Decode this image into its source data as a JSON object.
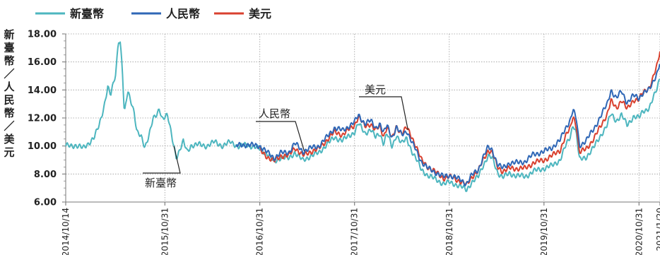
{
  "chart_data": {
    "type": "line",
    "ylabel": "新臺幣／人民幣／美元",
    "ylim": [
      6.0,
      18.0
    ],
    "y_ticks": [
      "18.00",
      "16.00",
      "14.00",
      "12.00",
      "10.00",
      "8.00",
      "6.00"
    ],
    "x_start": "2014-10-14",
    "x_end": "2021-01-20",
    "x_ticks": [
      {
        "date": "2014-10-14",
        "label": "2014/10/14"
      },
      {
        "date": "2015-10-31",
        "label": "2015/10/31"
      },
      {
        "date": "2016-10-31",
        "label": "2016/10/31"
      },
      {
        "date": "2017-10-31",
        "label": "2017/10/31"
      },
      {
        "date": "2018-10-31",
        "label": "2018/10/31"
      },
      {
        "date": "2019-10-31",
        "label": "2019/10/31"
      },
      {
        "date": "2020-10-31",
        "label": "2020/10/31"
      },
      {
        "date": "2021-01-20",
        "label": "2021/1/20"
      }
    ],
    "grid": true,
    "legend_position": "top-left",
    "series": [
      {
        "name": "新臺幣",
        "color": "#4db6bf",
        "points": [
          [
            "2014-10-14",
            10.0
          ],
          [
            "2014-11-20",
            10.05
          ],
          [
            "2014-12-20",
            9.85
          ],
          [
            "2015-01-10",
            10.2
          ],
          [
            "2015-02-01",
            10.6
          ],
          [
            "2015-02-20",
            11.5
          ],
          [
            "2015-03-10",
            12.8
          ],
          [
            "2015-03-25",
            14.2
          ],
          [
            "2015-04-05",
            13.6
          ],
          [
            "2015-04-25",
            15.2
          ],
          [
            "2015-05-05",
            17.6
          ],
          [
            "2015-05-12",
            17.4
          ],
          [
            "2015-05-20",
            15.6
          ],
          [
            "2015-05-28",
            12.2
          ],
          [
            "2015-06-10",
            13.9
          ],
          [
            "2015-06-25",
            13.1
          ],
          [
            "2015-07-05",
            12.4
          ],
          [
            "2015-07-15",
            11.0
          ],
          [
            "2015-08-01",
            10.6
          ],
          [
            "2015-08-15",
            9.9
          ],
          [
            "2015-09-01",
            10.9
          ],
          [
            "2015-09-15",
            11.9
          ],
          [
            "2015-10-01",
            12.2
          ],
          [
            "2015-10-10",
            12.7
          ],
          [
            "2015-10-20",
            12.0
          ],
          [
            "2015-11-10",
            12.2
          ],
          [
            "2015-12-01",
            10.3
          ],
          [
            "2015-12-15",
            9.2
          ],
          [
            "2016-01-10",
            10.3
          ],
          [
            "2016-01-25",
            9.6
          ],
          [
            "2016-02-10",
            10.05
          ],
          [
            "2016-03-10",
            10.1
          ],
          [
            "2016-04-10",
            10.0
          ],
          [
            "2016-05-10",
            10.3
          ],
          [
            "2016-06-10",
            10.0
          ],
          [
            "2016-07-10",
            10.3
          ],
          [
            "2016-08-10",
            9.95
          ],
          [
            "2016-09-10",
            10.1
          ],
          [
            "2016-10-31",
            9.8
          ],
          [
            "2016-12-01",
            9.4
          ],
          [
            "2016-12-25",
            8.85
          ],
          [
            "2017-01-20",
            9.2
          ],
          [
            "2017-02-20",
            9.1
          ],
          [
            "2017-03-15",
            9.55
          ],
          [
            "2017-04-15",
            8.95
          ],
          [
            "2017-05-15",
            9.3
          ],
          [
            "2017-06-15",
            9.5
          ],
          [
            "2017-07-15",
            10.1
          ],
          [
            "2017-08-15",
            10.6
          ],
          [
            "2017-09-15",
            10.4
          ],
          [
            "2017-10-31",
            11.0
          ],
          [
            "2017-11-15",
            11.6
          ],
          [
            "2017-12-10",
            10.9
          ],
          [
            "2018-01-01",
            11.2
          ],
          [
            "2018-01-20",
            10.6
          ],
          [
            "2018-02-05",
            10.9
          ],
          [
            "2018-02-20",
            10.2
          ],
          [
            "2018-03-05",
            10.9
          ],
          [
            "2018-03-25",
            9.9
          ],
          [
            "2018-04-10",
            10.8
          ],
          [
            "2018-05-01",
            10.2
          ],
          [
            "2018-05-20",
            10.5
          ],
          [
            "2018-06-10",
            9.6
          ],
          [
            "2018-06-25",
            9.1
          ],
          [
            "2018-07-15",
            8.3
          ],
          [
            "2018-08-10",
            7.9
          ],
          [
            "2018-09-10",
            7.6
          ],
          [
            "2018-10-10",
            7.3
          ],
          [
            "2018-10-31",
            7.4
          ],
          [
            "2018-11-20",
            7.3
          ],
          [
            "2018-12-20",
            7.05
          ],
          [
            "2019-01-05",
            6.85
          ],
          [
            "2019-01-25",
            7.4
          ],
          [
            "2019-02-20",
            7.8
          ],
          [
            "2019-03-10",
            8.6
          ],
          [
            "2019-03-30",
            9.3
          ],
          [
            "2019-04-15",
            9.1
          ],
          [
            "2019-05-05",
            8.1
          ],
          [
            "2019-05-25",
            7.8
          ],
          [
            "2019-06-20",
            8.0
          ],
          [
            "2019-07-20",
            7.9
          ],
          [
            "2019-08-20",
            7.8
          ],
          [
            "2019-09-20",
            8.2
          ],
          [
            "2019-10-31",
            8.4
          ],
          [
            "2019-12-01",
            8.6
          ],
          [
            "2020-01-01",
            9.0
          ],
          [
            "2020-01-20",
            9.9
          ],
          [
            "2020-02-10",
            10.7
          ],
          [
            "2020-02-20",
            11.6
          ],
          [
            "2020-03-05",
            10.8
          ],
          [
            "2020-03-15",
            9.0
          ],
          [
            "2020-04-10",
            9.2
          ],
          [
            "2020-05-10",
            9.9
          ],
          [
            "2020-06-10",
            10.9
          ],
          [
            "2020-07-01",
            11.5
          ],
          [
            "2020-07-15",
            12.3
          ],
          [
            "2020-08-05",
            11.8
          ],
          [
            "2020-08-25",
            12.2
          ],
          [
            "2020-09-15",
            11.5
          ],
          [
            "2020-10-10",
            12.1
          ],
          [
            "2020-10-31",
            12.0
          ],
          [
            "2020-11-15",
            12.5
          ],
          [
            "2020-12-10",
            12.7
          ],
          [
            "2020-12-25",
            13.4
          ],
          [
            "2021-01-10",
            14.2
          ],
          [
            "2021-01-20",
            15.0
          ]
        ]
      },
      {
        "name": "人民幣",
        "color": "#2f67b6",
        "points": [
          [
            "2016-08-01",
            10.0
          ],
          [
            "2016-09-01",
            10.1
          ],
          [
            "2016-10-31",
            10.0
          ],
          [
            "2016-12-01",
            9.5
          ],
          [
            "2016-12-25",
            9.15
          ],
          [
            "2017-01-20",
            9.5
          ],
          [
            "2017-02-20",
            9.55
          ],
          [
            "2017-03-15",
            10.2
          ],
          [
            "2017-04-15",
            9.6
          ],
          [
            "2017-05-15",
            9.85
          ],
          [
            "2017-06-15",
            10.0
          ],
          [
            "2017-07-15",
            10.6
          ],
          [
            "2017-08-15",
            11.3
          ],
          [
            "2017-09-15",
            11.1
          ],
          [
            "2017-10-31",
            11.7
          ],
          [
            "2017-11-15",
            12.2
          ],
          [
            "2017-12-10",
            11.6
          ],
          [
            "2018-01-01",
            11.8
          ],
          [
            "2018-01-20",
            11.3
          ],
          [
            "2018-02-05",
            11.6
          ],
          [
            "2018-02-20",
            10.9
          ],
          [
            "2018-03-05",
            11.5
          ],
          [
            "2018-03-25",
            10.6
          ],
          [
            "2018-04-10",
            11.3
          ],
          [
            "2018-05-01",
            10.8
          ],
          [
            "2018-05-20",
            11.1
          ],
          [
            "2018-06-10",
            10.2
          ],
          [
            "2018-06-25",
            9.7
          ],
          [
            "2018-07-15",
            8.9
          ],
          [
            "2018-08-10",
            8.4
          ],
          [
            "2018-09-10",
            8.1
          ],
          [
            "2018-10-10",
            7.8
          ],
          [
            "2018-10-31",
            7.9
          ],
          [
            "2018-11-20",
            7.8
          ],
          [
            "2018-12-20",
            7.5
          ],
          [
            "2019-01-05",
            7.3
          ],
          [
            "2019-01-25",
            7.9
          ],
          [
            "2019-02-20",
            8.3
          ],
          [
            "2019-03-10",
            9.2
          ],
          [
            "2019-03-30",
            9.9
          ],
          [
            "2019-04-15",
            9.7
          ],
          [
            "2019-05-05",
            8.7
          ],
          [
            "2019-05-25",
            8.4
          ],
          [
            "2019-06-20",
            8.8
          ],
          [
            "2019-07-20",
            8.8
          ],
          [
            "2019-08-20",
            8.9
          ],
          [
            "2019-09-20",
            9.4
          ],
          [
            "2019-10-31",
            9.6
          ],
          [
            "2019-12-01",
            9.9
          ],
          [
            "2020-01-01",
            10.4
          ],
          [
            "2020-01-20",
            11.2
          ],
          [
            "2020-02-10",
            11.9
          ],
          [
            "2020-02-20",
            12.6
          ],
          [
            "2020-03-05",
            11.8
          ],
          [
            "2020-03-15",
            10.0
          ],
          [
            "2020-04-10",
            10.4
          ],
          [
            "2020-05-10",
            11.2
          ],
          [
            "2020-06-10",
            12.3
          ],
          [
            "2020-07-01",
            13.0
          ],
          [
            "2020-07-15",
            14.0
          ],
          [
            "2020-08-05",
            13.4
          ],
          [
            "2020-08-25",
            13.9
          ],
          [
            "2020-09-15",
            13.1
          ],
          [
            "2020-10-10",
            13.6
          ],
          [
            "2020-10-31",
            13.4
          ],
          [
            "2020-11-15",
            13.8
          ],
          [
            "2020-12-10",
            14.0
          ],
          [
            "2020-12-25",
            14.6
          ],
          [
            "2021-01-10",
            15.3
          ],
          [
            "2021-01-20",
            16.0
          ]
        ]
      },
      {
        "name": "美元",
        "color": "#d9412f",
        "points": [
          [
            "2016-10-31",
            9.7
          ],
          [
            "2016-12-01",
            9.2
          ],
          [
            "2016-12-25",
            8.9
          ],
          [
            "2017-01-20",
            9.3
          ],
          [
            "2017-02-20",
            9.3
          ],
          [
            "2017-03-15",
            9.9
          ],
          [
            "2017-04-15",
            9.3
          ],
          [
            "2017-05-15",
            9.6
          ],
          [
            "2017-06-15",
            9.8
          ],
          [
            "2017-07-15",
            10.4
          ],
          [
            "2017-08-15",
            11.0
          ],
          [
            "2017-09-15",
            10.8
          ],
          [
            "2017-10-31",
            11.5
          ],
          [
            "2017-11-15",
            12.1
          ],
          [
            "2017-12-10",
            11.4
          ],
          [
            "2018-01-01",
            11.6
          ],
          [
            "2018-01-20",
            11.1
          ],
          [
            "2018-02-05",
            11.4
          ],
          [
            "2018-02-20",
            10.7
          ],
          [
            "2018-03-05",
            11.4
          ],
          [
            "2018-03-25",
            10.5
          ],
          [
            "2018-04-10",
            11.4
          ],
          [
            "2018-05-01",
            10.9
          ],
          [
            "2018-05-20",
            11.3
          ],
          [
            "2018-06-10",
            10.6
          ],
          [
            "2018-06-25",
            10.0
          ],
          [
            "2018-07-15",
            9.0
          ],
          [
            "2018-08-10",
            8.5
          ],
          [
            "2018-09-10",
            8.1
          ],
          [
            "2018-10-10",
            7.7
          ],
          [
            "2018-10-31",
            7.8
          ],
          [
            "2018-11-20",
            7.7
          ],
          [
            "2018-12-20",
            7.4
          ],
          [
            "2019-01-05",
            7.2
          ],
          [
            "2019-01-25",
            7.8
          ],
          [
            "2019-02-20",
            8.2
          ],
          [
            "2019-03-10",
            9.0
          ],
          [
            "2019-03-30",
            9.7
          ],
          [
            "2019-04-15",
            9.5
          ],
          [
            "2019-05-05",
            8.5
          ],
          [
            "2019-05-25",
            8.2
          ],
          [
            "2019-06-20",
            8.4
          ],
          [
            "2019-07-20",
            8.4
          ],
          [
            "2019-08-20",
            8.4
          ],
          [
            "2019-09-20",
            8.8
          ],
          [
            "2019-10-31",
            9.0
          ],
          [
            "2019-12-01",
            9.3
          ],
          [
            "2020-01-01",
            9.7
          ],
          [
            "2020-01-20",
            10.6
          ],
          [
            "2020-02-10",
            11.3
          ],
          [
            "2020-02-20",
            12.2
          ],
          [
            "2020-03-05",
            11.3
          ],
          [
            "2020-03-15",
            9.5
          ],
          [
            "2020-04-10",
            9.8
          ],
          [
            "2020-05-10",
            10.5
          ],
          [
            "2020-06-10",
            11.6
          ],
          [
            "2020-07-01",
            12.3
          ],
          [
            "2020-07-15",
            13.2
          ],
          [
            "2020-08-05",
            12.7
          ],
          [
            "2020-08-25",
            13.3
          ],
          [
            "2020-09-15",
            12.6
          ],
          [
            "2020-10-10",
            13.3
          ],
          [
            "2020-10-31",
            13.3
          ],
          [
            "2020-11-15",
            13.8
          ],
          [
            "2020-12-10",
            14.2
          ],
          [
            "2020-12-25",
            14.9
          ],
          [
            "2021-01-10",
            15.8
          ],
          [
            "2021-01-20",
            16.8
          ]
        ]
      }
    ],
    "annotations": [
      {
        "text": "新臺幣",
        "series": "新臺幣",
        "at": "2015-12-05"
      },
      {
        "text": "人民幣",
        "series": "人民幣",
        "at": "2017-04-20"
      },
      {
        "text": "美元",
        "series": "美元",
        "at": "2018-05-25"
      }
    ]
  }
}
